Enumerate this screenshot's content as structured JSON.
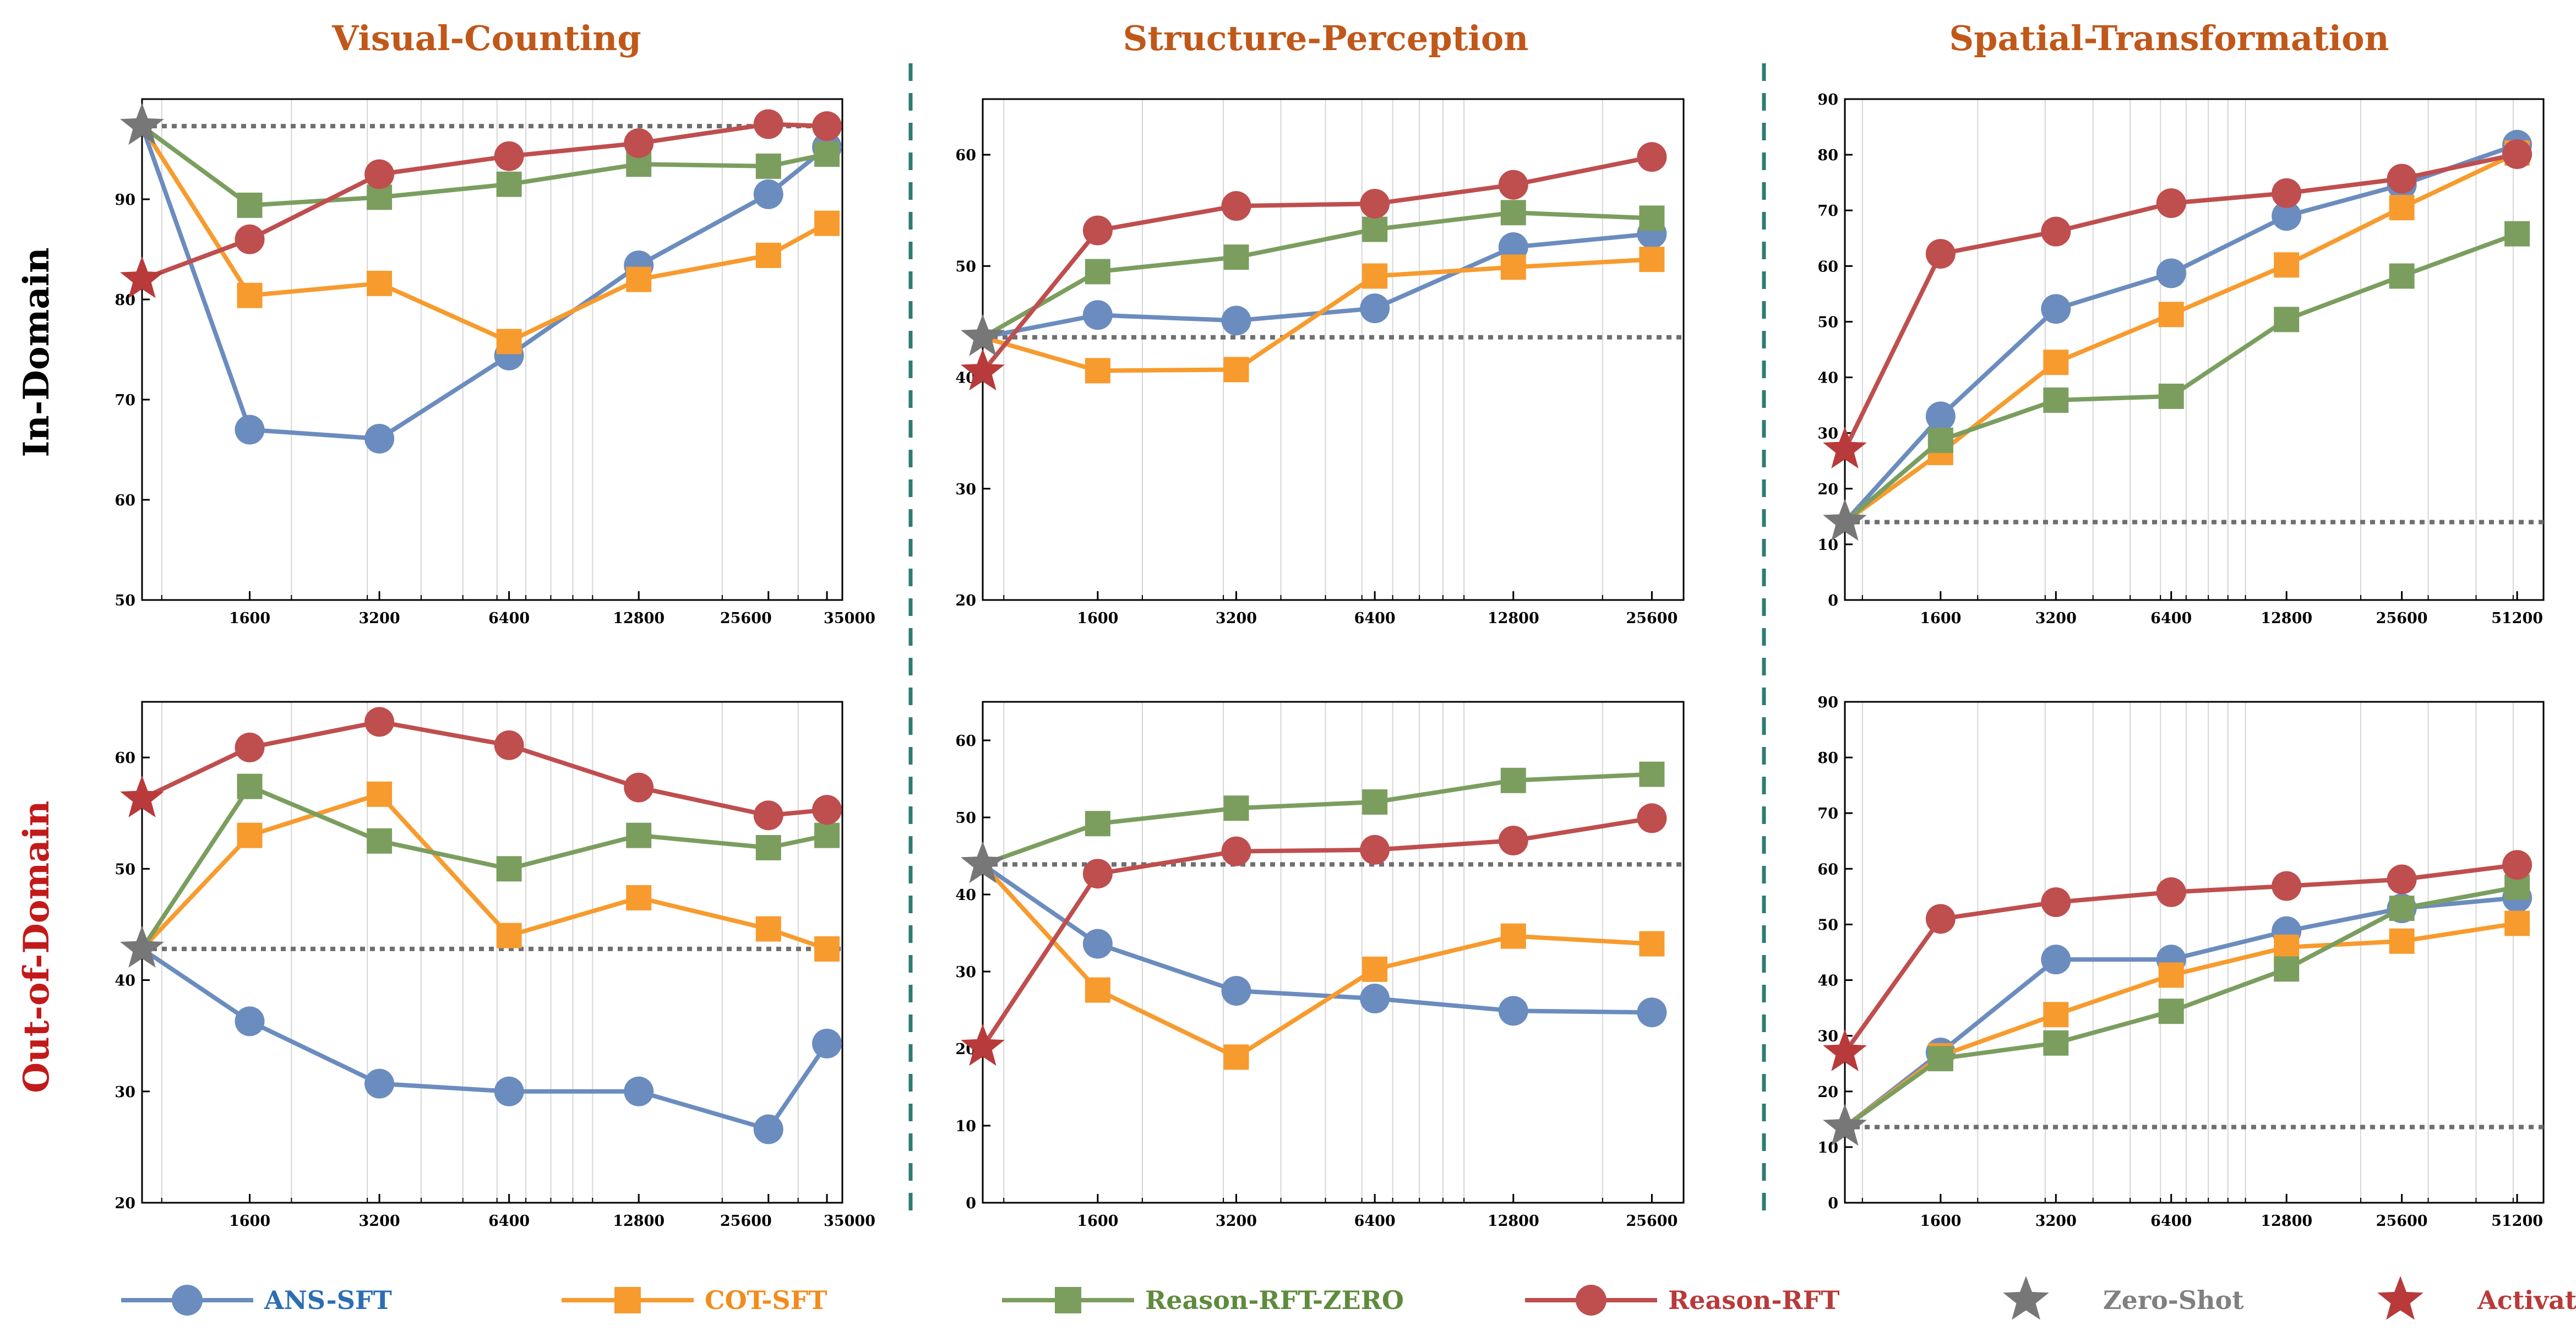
{
  "column_titles": [
    "Visual-Counting",
    "Structure-Perception",
    "Spatial-Transformation"
  ],
  "row_labels": [
    "In-Domain",
    "Out-of-Domain"
  ],
  "colors": {
    "ANS-SFT": "#6b8cbe",
    "COT-SFT": "#f79b2e",
    "Reason-RFT-ZERO": "#7b9e5f",
    "Reason-RFT": "#bf4e4e",
    "Zero-Shot": "#777777",
    "Activation": "#b83a3a",
    "column_title": "#c0581a",
    "row_in_domain": "#000000",
    "row_out_domain": "#c21a1a",
    "divider": "#2f7b72"
  },
  "legend": [
    {
      "name": "ANS-SFT",
      "marker": "circle",
      "line": true,
      "text_color": "#2c6db3"
    },
    {
      "name": "COT-SFT",
      "marker": "square",
      "line": true,
      "text_color": "#f28c1a"
    },
    {
      "name": "Reason-RFT-ZERO",
      "marker": "square",
      "line": true,
      "text_color": "#5e8b3c"
    },
    {
      "name": "Reason-RFT",
      "marker": "circle",
      "line": true,
      "text_color": "#b83a3a"
    },
    {
      "name": "Zero-Shot",
      "marker": "star",
      "line": false,
      "text_color": "#808080"
    },
    {
      "name": "Activation",
      "marker": "star",
      "line": false,
      "text_color": "#b83a3a"
    }
  ],
  "chart_data": [
    {
      "type": "line",
      "column": "Visual-Counting",
      "row": "In-Domain",
      "x_scale": "log",
      "xlim": [
        900,
        38000
      ],
      "x_ticks": [
        1600,
        3200,
        6400,
        12800,
        25600,
        35000
      ],
      "x_tick_labels": [
        "1600",
        "3200",
        "6400",
        "12800",
        "25600",
        "35000"
      ],
      "ylim": [
        50,
        100
      ],
      "y_ticks": [
        50,
        60,
        70,
        80,
        90
      ],
      "zero_shot": 97.3,
      "activation": 82.0,
      "series": [
        {
          "name": "ANS-SFT",
          "x": [
            1600,
            3200,
            6400,
            12800,
            25600,
            35000
          ],
          "values": [
            67.0,
            66.1,
            74.4,
            83.4,
            90.5,
            95.2
          ]
        },
        {
          "name": "COT-SFT",
          "x": [
            1600,
            3200,
            6400,
            12800,
            25600,
            35000
          ],
          "values": [
            80.4,
            81.6,
            75.8,
            82.0,
            84.4,
            87.6
          ]
        },
        {
          "name": "Reason-RFT-ZERO",
          "x": [
            1600,
            3200,
            6400,
            12800,
            25600,
            35000
          ],
          "values": [
            89.4,
            90.2,
            91.5,
            93.5,
            93.3,
            94.5
          ]
        },
        {
          "name": "Reason-RFT",
          "x": [
            1600,
            3200,
            6400,
            12800,
            25600,
            35000
          ],
          "values": [
            86.0,
            92.5,
            94.3,
            95.6,
            97.5,
            97.3
          ]
        }
      ]
    },
    {
      "type": "line",
      "column": "Structure-Perception",
      "row": "In-Domain",
      "x_scale": "log",
      "xlim": [
        900,
        30000
      ],
      "x_ticks": [
        1600,
        3200,
        6400,
        12800,
        25600
      ],
      "x_tick_labels": [
        "1600",
        "3200",
        "6400",
        "12800",
        "25600"
      ],
      "ylim": [
        20,
        65
      ],
      "y_ticks": [
        20,
        30,
        40,
        50,
        60
      ],
      "zero_shot": 43.6,
      "activation": 40.5,
      "series": [
        {
          "name": "ANS-SFT",
          "x": [
            1600,
            3200,
            6400,
            12800,
            25600
          ],
          "values": [
            45.6,
            45.1,
            46.2,
            51.7,
            52.9
          ]
        },
        {
          "name": "COT-SFT",
          "x": [
            1600,
            3200,
            6400,
            12800,
            25600
          ],
          "values": [
            40.6,
            40.7,
            49.1,
            49.9,
            50.6
          ]
        },
        {
          "name": "Reason-RFT-ZERO",
          "x": [
            1600,
            3200,
            6400,
            12800,
            25600
          ],
          "values": [
            49.5,
            50.8,
            53.3,
            54.8,
            54.3
          ]
        },
        {
          "name": "Reason-RFT",
          "x": [
            1600,
            3200,
            6400,
            12800,
            25600
          ],
          "values": [
            53.2,
            55.4,
            55.6,
            57.3,
            59.8
          ]
        }
      ]
    },
    {
      "type": "line",
      "column": "Spatial-Transformation",
      "row": "In-Domain",
      "x_scale": "log",
      "xlim": [
        900,
        60000
      ],
      "x_ticks": [
        1600,
        3200,
        6400,
        12800,
        25600,
        51200
      ],
      "x_tick_labels": [
        "1600",
        "3200",
        "6400",
        "12800",
        "25600",
        "51200"
      ],
      "ylim": [
        0,
        90
      ],
      "y_ticks": [
        0,
        10,
        20,
        30,
        40,
        50,
        60,
        70,
        80,
        90
      ],
      "zero_shot": 14.0,
      "activation": 27.0,
      "series": [
        {
          "name": "ANS-SFT",
          "x": [
            1600,
            3200,
            6400,
            12800,
            25600,
            51200
          ],
          "values": [
            33.0,
            52.3,
            58.7,
            69.0,
            74.6,
            81.8
          ]
        },
        {
          "name": "COT-SFT",
          "x": [
            1600,
            3200,
            6400,
            12800,
            25600,
            51200
          ],
          "values": [
            26.5,
            42.7,
            51.3,
            60.2,
            70.5,
            80.3
          ]
        },
        {
          "name": "Reason-RFT-ZERO",
          "x": [
            1600,
            3200,
            6400,
            12800,
            25600,
            51200
          ],
          "values": [
            28.7,
            35.9,
            36.6,
            50.4,
            58.2,
            65.8
          ]
        },
        {
          "name": "Reason-RFT",
          "x": [
            1600,
            3200,
            6400,
            12800,
            25600,
            51200
          ],
          "values": [
            62.2,
            66.2,
            71.3,
            73.1,
            75.7,
            80.1
          ]
        }
      ]
    },
    {
      "type": "line",
      "column": "Visual-Counting",
      "row": "Out-of-Domain",
      "x_scale": "log",
      "xlim": [
        900,
        38000
      ],
      "x_ticks": [
        1600,
        3200,
        6400,
        12800,
        25600,
        35000
      ],
      "x_tick_labels": [
        "1600",
        "3200",
        "6400",
        "12800",
        "25600",
        "35000"
      ],
      "ylim": [
        20,
        65
      ],
      "y_ticks": [
        20,
        30,
        40,
        50,
        60
      ],
      "zero_shot": 42.8,
      "activation": 56.3,
      "series": [
        {
          "name": "ANS-SFT",
          "x": [
            1600,
            3200,
            6400,
            12800,
            25600,
            35000
          ],
          "values": [
            36.3,
            30.7,
            30.0,
            30.0,
            26.6,
            34.3
          ]
        },
        {
          "name": "COT-SFT",
          "x": [
            1600,
            3200,
            6400,
            12800,
            25600,
            35000
          ],
          "values": [
            53.0,
            56.7,
            44.0,
            47.4,
            44.6,
            42.8
          ]
        },
        {
          "name": "Reason-RFT-ZERO",
          "x": [
            1600,
            3200,
            6400,
            12800,
            25600,
            35000
          ],
          "values": [
            57.4,
            52.5,
            50.0,
            53.0,
            51.9,
            53.0
          ]
        },
        {
          "name": "Reason-RFT",
          "x": [
            1600,
            3200,
            6400,
            12800,
            25600,
            35000
          ],
          "values": [
            60.9,
            63.2,
            61.1,
            57.3,
            54.8,
            55.3
          ]
        }
      ]
    },
    {
      "type": "line",
      "column": "Structure-Perception",
      "row": "Out-of-Domain",
      "x_scale": "log",
      "xlim": [
        900,
        30000
      ],
      "x_ticks": [
        1600,
        3200,
        6400,
        12800,
        25600
      ],
      "x_tick_labels": [
        "1600",
        "3200",
        "6400",
        "12800",
        "25600"
      ],
      "ylim": [
        0,
        65
      ],
      "y_ticks": [
        0,
        10,
        20,
        30,
        40,
        50,
        60
      ],
      "zero_shot": 43.9,
      "activation": 20.2,
      "series": [
        {
          "name": "ANS-SFT",
          "x": [
            1600,
            3200,
            6400,
            12800,
            25600
          ],
          "values": [
            33.6,
            27.5,
            26.5,
            24.9,
            24.7
          ]
        },
        {
          "name": "COT-SFT",
          "x": [
            1600,
            3200,
            6400,
            12800,
            25600
          ],
          "values": [
            27.6,
            18.9,
            30.3,
            34.6,
            33.6
          ]
        },
        {
          "name": "Reason-RFT-ZERO",
          "x": [
            1600,
            3200,
            6400,
            12800,
            25600
          ],
          "values": [
            49.2,
            51.2,
            52.0,
            54.8,
            55.6
          ]
        },
        {
          "name": "Reason-RFT",
          "x": [
            1600,
            3200,
            6400,
            12800,
            25600
          ],
          "values": [
            42.7,
            45.6,
            45.8,
            47.0,
            49.9
          ]
        }
      ]
    },
    {
      "type": "line",
      "column": "Spatial-Transformation",
      "row": "Out-of-Domain",
      "x_scale": "log",
      "xlim": [
        900,
        60000
      ],
      "x_ticks": [
        1600,
        3200,
        6400,
        12800,
        25600,
        51200
      ],
      "x_tick_labels": [
        "1600",
        "3200",
        "6400",
        "12800",
        "25600",
        "51200"
      ],
      "ylim": [
        0,
        90
      ],
      "y_ticks": [
        0,
        10,
        20,
        30,
        40,
        50,
        60,
        70,
        80,
        90
      ],
      "zero_shot": 13.6,
      "activation": 27.0,
      "series": [
        {
          "name": "ANS-SFT",
          "x": [
            1600,
            3200,
            6400,
            12800,
            25600,
            51200
          ],
          "values": [
            27.0,
            43.7,
            43.7,
            48.8,
            52.9,
            54.8
          ]
        },
        {
          "name": "COT-SFT",
          "x": [
            1600,
            3200,
            6400,
            12800,
            25600,
            51200
          ],
          "values": [
            26.4,
            33.8,
            40.9,
            45.9,
            47.0,
            50.2
          ]
        },
        {
          "name": "Reason-RFT-ZERO",
          "x": [
            1600,
            3200,
            6400,
            12800,
            25600,
            51200
          ],
          "values": [
            25.9,
            28.7,
            34.4,
            42.0,
            52.9,
            56.7
          ]
        },
        {
          "name": "Reason-RFT",
          "x": [
            1600,
            3200,
            6400,
            12800,
            25600,
            51200
          ],
          "values": [
            51.0,
            54.0,
            55.8,
            56.9,
            58.1,
            60.7
          ]
        }
      ]
    }
  ]
}
